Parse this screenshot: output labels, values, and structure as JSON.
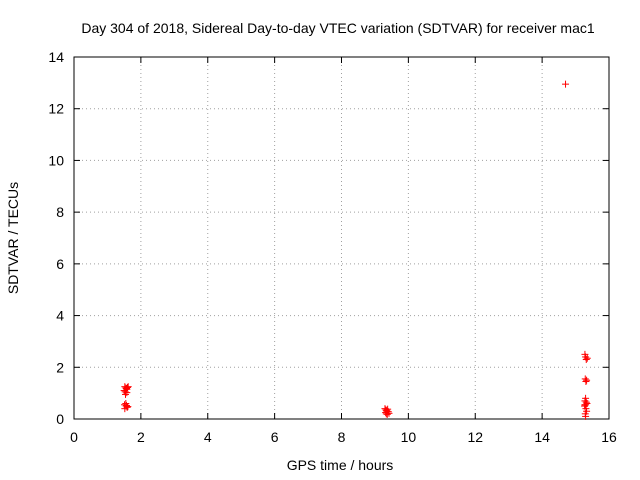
{
  "chart_data": {
    "type": "scatter",
    "title": "Day 304 of 2018, Sidereal Day-to-day VTEC variation (SDTVAR) for receiver mac1",
    "xlabel": "GPS time / hours",
    "ylabel": "SDTVAR / TECUs",
    "xlim": [
      0,
      16
    ],
    "ylim": [
      0,
      14
    ],
    "xticks": [
      "0",
      "2",
      "4",
      "6",
      "8",
      "10",
      "12",
      "14",
      "16"
    ],
    "yticks": [
      "0",
      "2",
      "4",
      "6",
      "8",
      "10",
      "12",
      "14"
    ],
    "grid": true,
    "marker": "+",
    "color": "#ff0000",
    "series": [
      {
        "x": [
          1.52,
          1.55,
          1.58,
          1.62,
          1.5,
          1.53,
          1.57,
          1.6,
          1.54,
          1.58,
          1.51,
          1.56,
          1.59,
          1.52,
          1.55,
          1.57,
          1.61,
          9.3,
          9.33,
          9.36,
          9.4,
          9.32,
          9.35,
          9.38,
          9.42,
          9.34,
          9.37,
          14.7,
          15.28,
          15.3,
          15.32,
          15.35,
          15.29,
          15.31,
          15.33,
          15.3,
          15.28,
          15.32,
          15.34,
          15.3,
          15.27,
          15.31,
          15.33,
          15.29,
          15.3,
          15.28
        ],
        "y": [
          1.25,
          1.2,
          1.15,
          1.25,
          1.1,
          1.05,
          1.18,
          1.22,
          0.95,
          1.02,
          0.55,
          0.5,
          0.45,
          0.4,
          0.6,
          0.52,
          0.48,
          0.4,
          0.35,
          0.3,
          0.28,
          0.25,
          0.32,
          0.38,
          0.22,
          0.2,
          0.18,
          12.95,
          2.5,
          2.4,
          2.3,
          2.35,
          1.55,
          1.45,
          1.5,
          0.8,
          0.7,
          0.65,
          0.6,
          0.55,
          0.5,
          0.4,
          0.3,
          0.2,
          0.1,
          0.55
        ]
      }
    ]
  }
}
